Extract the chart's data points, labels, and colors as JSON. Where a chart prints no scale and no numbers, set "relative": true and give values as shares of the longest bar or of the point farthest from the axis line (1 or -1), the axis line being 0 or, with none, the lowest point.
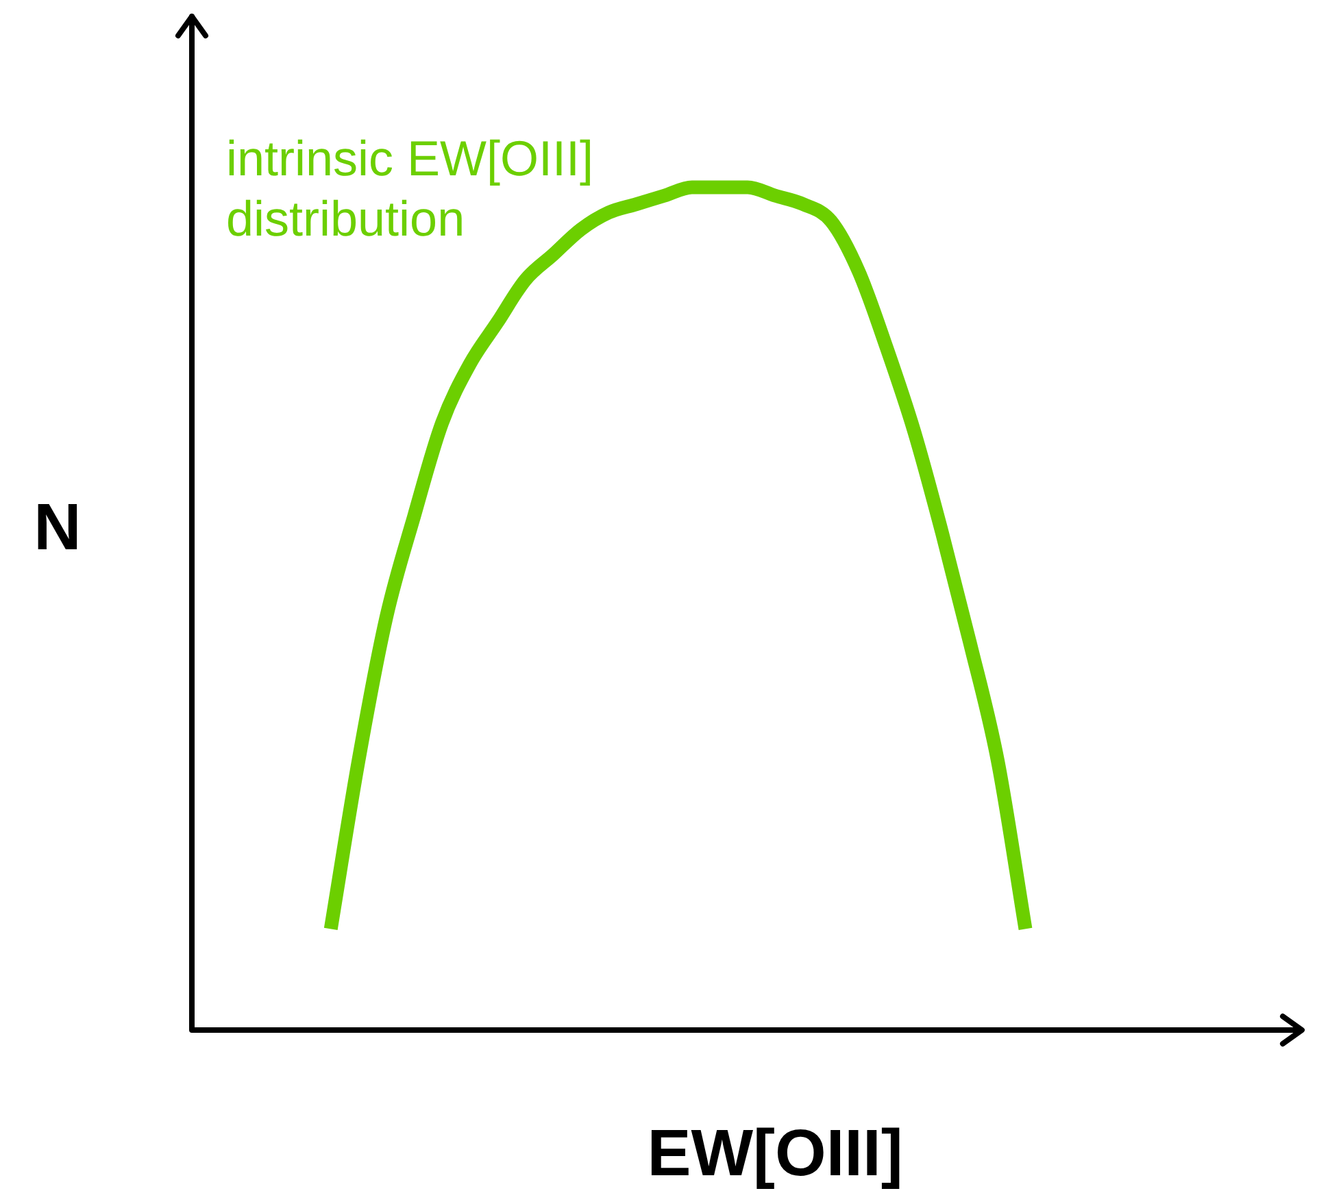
{
  "chart_data": {
    "type": "line",
    "relative": true,
    "xlabel": "EW[OIII]",
    "ylabel": "N",
    "grid": false,
    "legend": false,
    "marker": "none",
    "categories": [
      null,
      null,
      null,
      null,
      null,
      null,
      null,
      null,
      null,
      null,
      null,
      null,
      null,
      null,
      null,
      null,
      null,
      null,
      null,
      null,
      null,
      null,
      null,
      null,
      null,
      null,
      null,
      null,
      null,
      null,
      null,
      null,
      null,
      null,
      null,
      null,
      null,
      null,
      null,
      null,
      null
    ],
    "series": [
      {
        "name": "intrinsic EW[OIII] distribution",
        "color": "#6ccf00",
        "values": [
          null,
          null,
          null,
          null,
          null,
          0.12,
          0.32,
          0.49,
          0.61,
          0.72,
          0.79,
          0.84,
          0.89,
          0.92,
          0.95,
          0.97,
          0.98,
          0.99,
          1,
          1,
          1,
          0.99,
          0.98,
          0.96,
          0.9,
          0.81,
          0.71,
          0.59,
          0.46,
          0.32,
          0.12,
          null,
          null,
          null,
          null,
          null,
          null,
          null,
          null,
          null,
          null
        ]
      }
    ]
  }
}
